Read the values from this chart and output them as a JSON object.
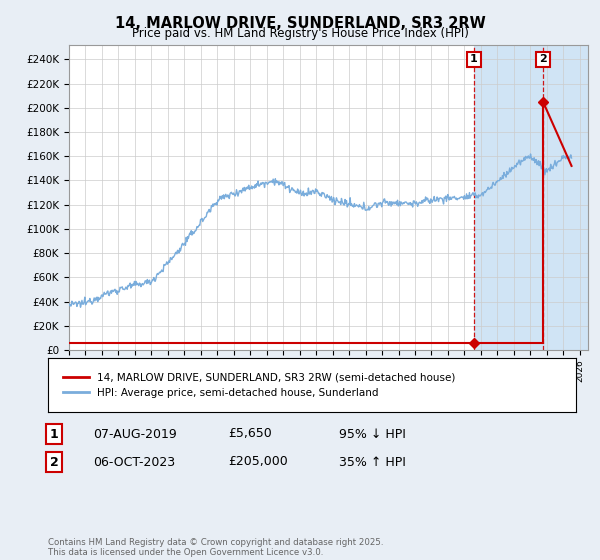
{
  "title": "14, MARLOW DRIVE, SUNDERLAND, SR3 2RW",
  "subtitle": "Price paid vs. HM Land Registry's House Price Index (HPI)",
  "ylabel_ticks": [
    "£0",
    "£20K",
    "£40K",
    "£60K",
    "£80K",
    "£100K",
    "£120K",
    "£140K",
    "£160K",
    "£180K",
    "£200K",
    "£220K",
    "£240K"
  ],
  "ytick_values": [
    0,
    20000,
    40000,
    60000,
    80000,
    100000,
    120000,
    140000,
    160000,
    180000,
    200000,
    220000,
    240000
  ],
  "ylim": [
    0,
    252000
  ],
  "xlim_start": 1995,
  "xlim_end": 2026.5,
  "hpi_color": "#7aaddc",
  "price_color": "#cc0000",
  "marker1_date": 2019.58,
  "marker1_price": 5650,
  "marker2_date": 2023.77,
  "marker2_price": 205000,
  "shade_start": 2019.58,
  "legend_entry1": "14, MARLOW DRIVE, SUNDERLAND, SR3 2RW (semi-detached house)",
  "legend_entry2": "HPI: Average price, semi-detached house, Sunderland",
  "table_row1": [
    "1",
    "07-AUG-2019",
    "£5,650",
    "95% ↓ HPI"
  ],
  "table_row2": [
    "2",
    "06-OCT-2023",
    "£205,000",
    "35% ↑ HPI"
  ],
  "footnote": "Contains HM Land Registry data © Crown copyright and database right 2025.\nThis data is licensed under the Open Government Licence v3.0.",
  "background_color": "#e8eef5",
  "plot_bg_color": "#ffffff",
  "shade_color": "#d0e4f5"
}
